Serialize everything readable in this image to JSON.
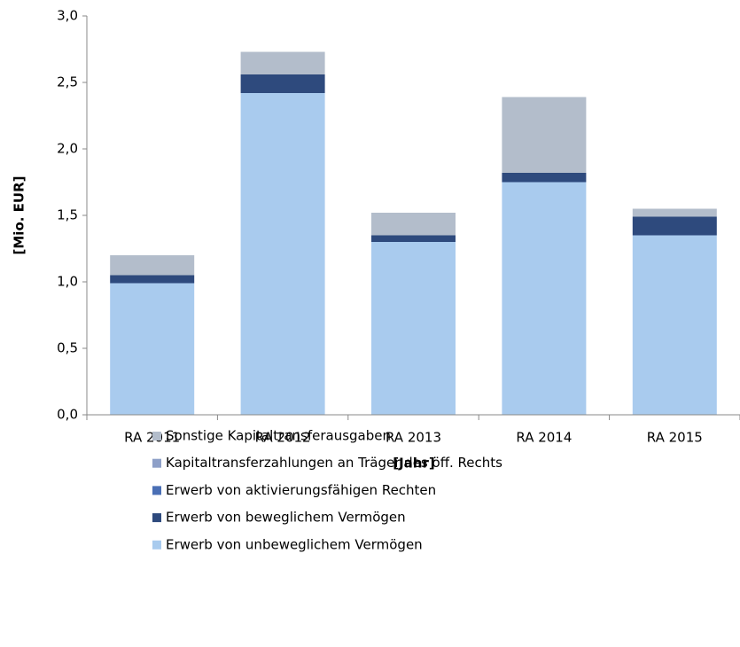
{
  "chart_data": {
    "type": "stacked_bar",
    "y_label": "[Mio. EUR]",
    "x_label": "[Jahr]",
    "categories": [
      "RA 2011",
      "RA 2012",
      "RA 2013",
      "RA 2014",
      "RA 2015"
    ],
    "series": [
      {
        "name": "Erwerb von unbeweglichem Vermögen",
        "color": "#a9cbee",
        "values": [
          0.99,
          2.42,
          1.3,
          1.75,
          1.35
        ]
      },
      {
        "name": "Erwerb von beweglichem Vermögen",
        "color": "#2e4a7d",
        "values": [
          0.06,
          0.14,
          0.05,
          0.07,
          0.14
        ]
      },
      {
        "name": "Erwerb von aktivierungsfähigen Rechten",
        "color": "#4a6fb5",
        "values": [
          0,
          0,
          0,
          0,
          0
        ]
      },
      {
        "name": "Kapitaltransferzahlungen an Träger des öff. Rechts",
        "color": "#8ea0c8",
        "values": [
          0,
          0,
          0,
          0,
          0
        ]
      },
      {
        "name": "Sonstige Kapitaltransferausgaben",
        "color": "#b3bdcb",
        "values": [
          0.15,
          0.17,
          0.17,
          0.57,
          0.06
        ]
      }
    ],
    "ylim": [
      0,
      3
    ],
    "yticks": [
      {
        "value": 0,
        "label": "0,0"
      },
      {
        "value": 0.5,
        "label": "0,5"
      },
      {
        "value": 1,
        "label": "1,0"
      },
      {
        "value": 1.5,
        "label": "1,5"
      },
      {
        "value": 2,
        "label": "2,0"
      },
      {
        "value": 2.5,
        "label": "2,5"
      },
      {
        "value": 3,
        "label": "3,0"
      }
    ],
    "grid": false
  }
}
